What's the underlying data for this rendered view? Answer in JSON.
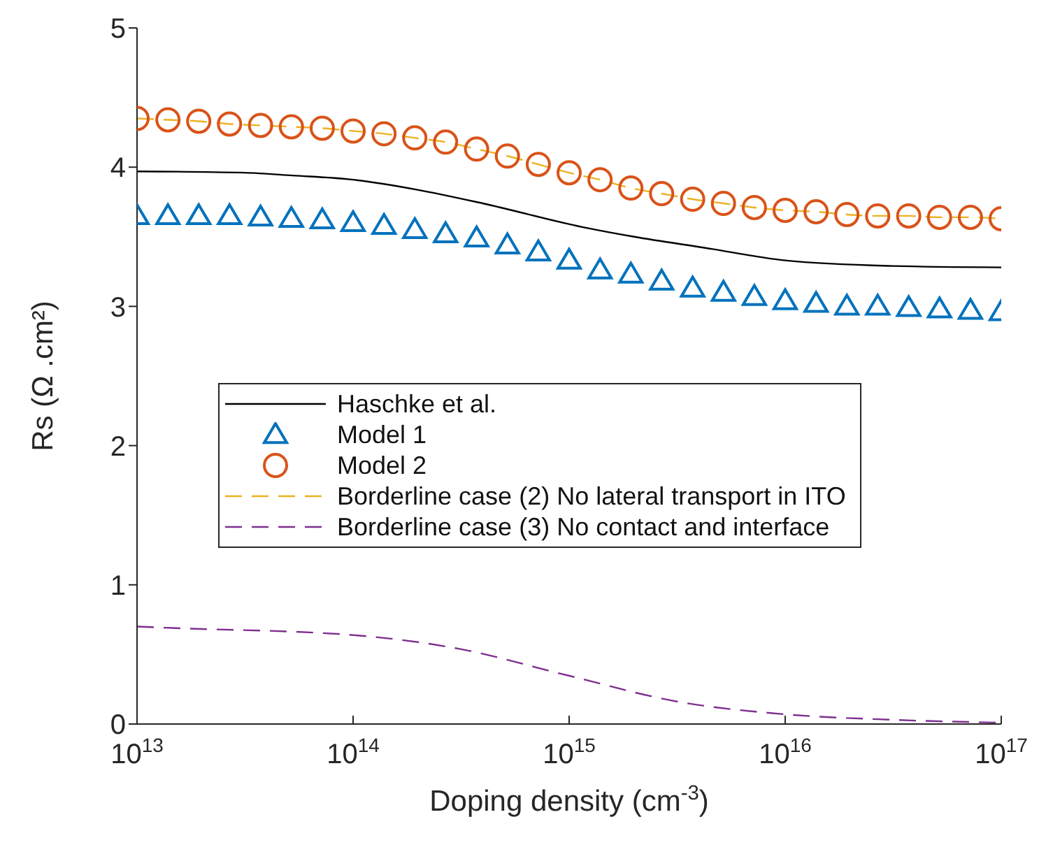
{
  "chart_data": {
    "type": "line",
    "xlabel": "Doping density (cm$^{-3}$)",
    "ylabel": "Rs (Ω .cm²)",
    "log": "x",
    "xlim": [
      10000000000000.0,
      1e+17
    ],
    "ylim": [
      0,
      5
    ],
    "xticks": [
      {
        "value": 10000000000000.0,
        "label": "10$^{13}$"
      },
      {
        "value": 100000000000000.0,
        "label": "10$^{14}$"
      },
      {
        "value": 1000000000000000.0,
        "label": "10$^{15}$"
      },
      {
        "value": 1e+16,
        "label": "10$^{16}$"
      },
      {
        "value": 1e+17,
        "label": "10$^{17}$"
      }
    ],
    "yticks": [
      0,
      1,
      2,
      3,
      4,
      5
    ],
    "grid": false,
    "legend": "center",
    "x": [
      10000000000000.0,
      13900000000000.0,
      19300000000000.0,
      26800000000000.0,
      37300000000000.0,
      51800000000000.0,
      72000000000000.0,
      100000000000000.0,
      139000000000000.0,
      193000000000000.0,
      268000000000000.0,
      373000000000000.0,
      518000000000000.0,
      720000000000000.0,
      1000000000000000.0,
      1390000000000000.0,
      1930000000000000.0,
      2680000000000000.0,
      3730000000000000.0,
      5180000000000000.0,
      7200000000000000.0,
      1e+16,
      1.39e+16,
      1.93e+16,
      2.68e+16,
      3.73e+16,
      5.18e+16,
      7.2e+16,
      1e+17
    ],
    "series": [
      {
        "name": "Haschke et al.",
        "type": "line",
        "color": "#000000",
        "line_style": "solid",
        "marker": "none",
        "x": [
          10000000000000.0,
          31600000000000.0,
          52500000000000.0,
          100000000000000.0,
          195000000000000.0,
          398000000000000.0,
          1150000000000000.0,
          2000000000000000.0,
          4270000000000000.0,
          1e+16,
          3.16e+16,
          1e+17
        ],
        "values": [
          3.97,
          3.96,
          3.94,
          3.91,
          3.84,
          3.74,
          3.57,
          3.5,
          3.42,
          3.33,
          3.29,
          3.28
        ]
      },
      {
        "name": "Model 1",
        "type": "scatter",
        "color": "#0072bd",
        "marker": "triangle",
        "values": [
          3.65,
          3.65,
          3.65,
          3.65,
          3.64,
          3.63,
          3.62,
          3.6,
          3.58,
          3.55,
          3.52,
          3.49,
          3.44,
          3.39,
          3.33,
          3.26,
          3.23,
          3.18,
          3.13,
          3.1,
          3.07,
          3.04,
          3.02,
          3.0,
          3.0,
          2.99,
          2.98,
          2.97,
          2.96
        ]
      },
      {
        "name": "Model 2",
        "type": "scatter",
        "color": "#d95319",
        "marker": "circle",
        "values": [
          4.35,
          4.34,
          4.33,
          4.31,
          4.3,
          4.29,
          4.28,
          4.26,
          4.24,
          4.21,
          4.18,
          4.13,
          4.08,
          4.02,
          3.96,
          3.91,
          3.85,
          3.81,
          3.77,
          3.74,
          3.71,
          3.69,
          3.68,
          3.66,
          3.65,
          3.65,
          3.64,
          3.64,
          3.63
        ]
      },
      {
        "name": "Borderline case (2) No lateral transport in ITO",
        "type": "line",
        "color": "#edb120",
        "line_style": "dashed",
        "marker": "none",
        "values": [
          4.35,
          4.34,
          4.33,
          4.31,
          4.3,
          4.29,
          4.28,
          4.26,
          4.24,
          4.21,
          4.18,
          4.13,
          4.08,
          4.02,
          3.96,
          3.91,
          3.85,
          3.81,
          3.77,
          3.74,
          3.71,
          3.69,
          3.68,
          3.66,
          3.65,
          3.65,
          3.64,
          3.64,
          3.63
        ]
      },
      {
        "name": "Borderline case (3) No contact and interface",
        "type": "line",
        "color": "#7e2f8e",
        "line_style": "dashed",
        "marker": "none",
        "x": [
          10000000000000.0,
          14500000000000.0,
          98000000000000.0,
          310000000000000.0,
          980000000000000.0,
          3200000000000000.0,
          1e+16,
          3.2e+16,
          1e+17
        ],
        "values": [
          0.7,
          0.69,
          0.64,
          0.54,
          0.35,
          0.16,
          0.07,
          0.03,
          0.01
        ]
      }
    ]
  }
}
